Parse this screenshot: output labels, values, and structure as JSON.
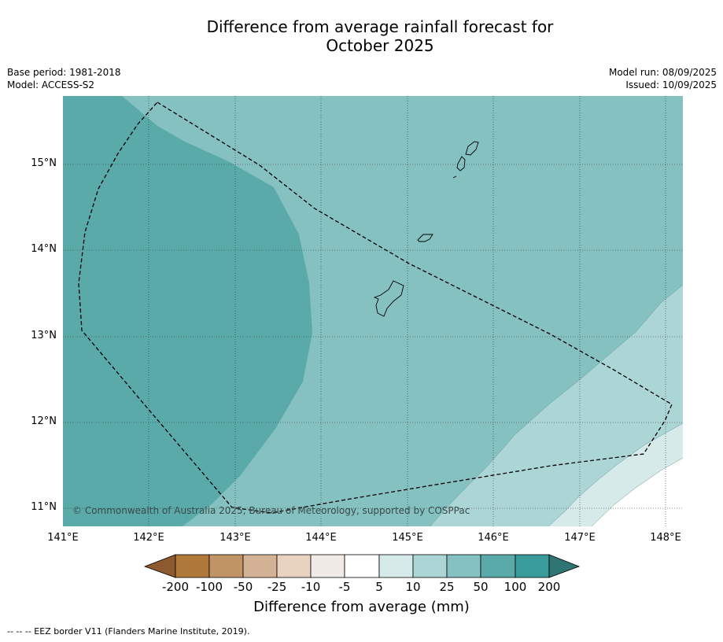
{
  "title_line1": "Difference from average rainfall forecast for",
  "title_line2": "October 2025",
  "meta_left": {
    "base_period": "Base period: 1981-2018",
    "model": "Model: ACCESS-S2"
  },
  "meta_right": {
    "model_run": "Model run: 08/09/2025",
    "issued": "Issued: 10/09/2025"
  },
  "latitude_labels": [
    "15°N",
    "14°N",
    "13°N",
    "12°N",
    "11°N"
  ],
  "longitude_labels": [
    "141°E",
    "142°E",
    "143°E",
    "144°E",
    "145°E",
    "146°E",
    "147°E",
    "148°E"
  ],
  "copyright": "© Commonwealth of Australia 2025, Bureau of Meteorology, supported by COSPPac",
  "colorbar": {
    "labels": [
      "-200",
      "-100",
      "-50",
      "-25",
      "-10",
      "-5",
      "5",
      "10",
      "25",
      "50",
      "100",
      "200"
    ],
    "title": "Difference from average (mm)"
  },
  "colors": {
    "band_25_50": "#84c1c0",
    "band_50_100": "#5baaaa",
    "band_10_25": "#acd5d6",
    "band_5_10": "#d6eaea",
    "band_neutral": "#ffffff"
  },
  "footer": "--  --  -- EEZ border V11 (Flanders Marine Institute, 2019)."
}
